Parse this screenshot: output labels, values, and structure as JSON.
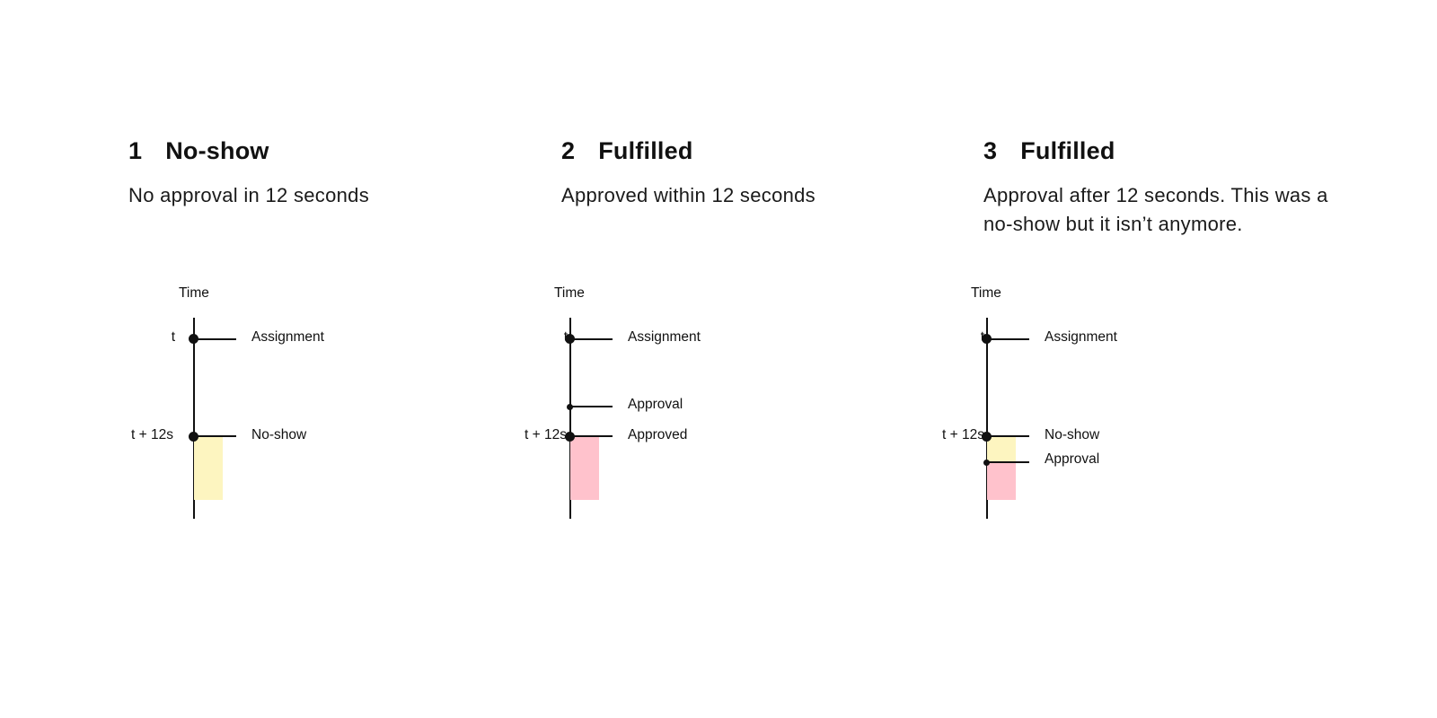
{
  "panels": [
    {
      "number": "1",
      "title": "No-show",
      "description": "No approval in 12 seconds",
      "axis_label": "Time",
      "ticks": [
        "t",
        "t + 12s"
      ],
      "events": [
        "Assignment",
        "No-show"
      ]
    },
    {
      "number": "2",
      "title": "Fulfilled",
      "description": "Approved within 12 seconds",
      "axis_label": "Time",
      "ticks": [
        "t",
        "t + 12s"
      ],
      "events": [
        "Assignment",
        "Approval",
        "Approved"
      ]
    },
    {
      "number": "3",
      "title": "Fulfilled",
      "description": "Approval after 12 seconds. This was a no-show but it isn’t anymore.",
      "axis_label": "Time",
      "ticks": [
        "t",
        "t + 12s"
      ],
      "events": [
        "Assignment",
        "No-show",
        "Approval"
      ]
    }
  ],
  "colors": {
    "no_show_period": "#fdf5c0",
    "fulfilled_period": "#ffc2cc",
    "line": "#111111"
  }
}
